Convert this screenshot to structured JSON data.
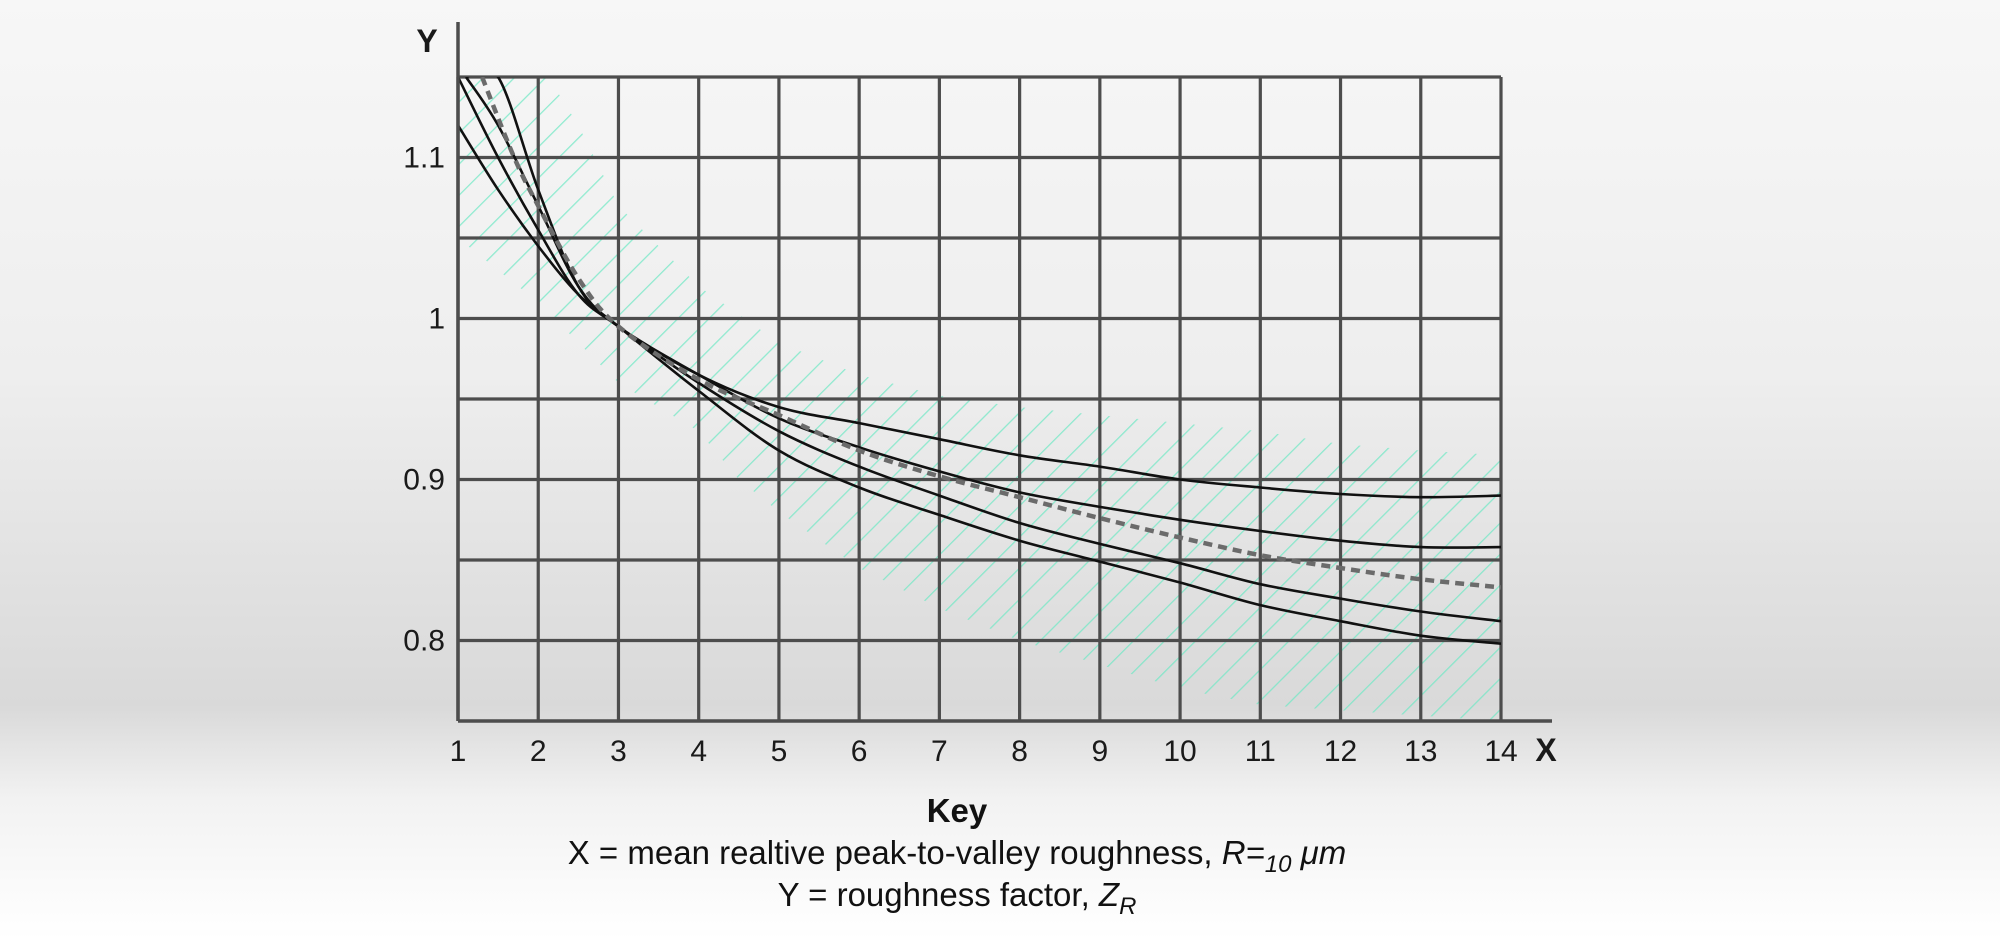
{
  "chart_data": {
    "type": "line",
    "axis_letters": {
      "x": "X",
      "y": "Y"
    },
    "xlim": [
      1,
      14
    ],
    "ylim": [
      0.75,
      1.15
    ],
    "x_ticks": [
      1,
      2,
      3,
      4,
      5,
      6,
      7,
      8,
      9,
      10,
      11,
      12,
      13,
      14
    ],
    "x_tick_labels": [
      "1",
      "2",
      "3",
      "4",
      "5",
      "6",
      "7",
      "8",
      "9",
      "10",
      "11",
      "12",
      "13",
      "14"
    ],
    "y_ticks": [
      0.8,
      0.9,
      1.0,
      1.1
    ],
    "y_tick_labels": [
      "0.8",
      "0.9",
      "1",
      "1.1"
    ],
    "y_gridlines": [
      0.8,
      0.85,
      0.9,
      0.95,
      1.0,
      1.05,
      1.1,
      1.15
    ],
    "grid": true,
    "colors": {
      "grid": "#4d4d4d",
      "curve": "#111111",
      "dashed": "#6b6b6b",
      "hatch": "#6fe8c4"
    },
    "series": [
      {
        "style": "solid",
        "points": [
          [
            1.1,
            1.15
          ],
          [
            1.5,
            1.15
          ],
          [
            2.0,
            1.08
          ],
          [
            2.5,
            1.02
          ],
          [
            3.0,
            0.995
          ],
          [
            4.0,
            0.965
          ],
          [
            5.0,
            0.945
          ],
          [
            6.0,
            0.935
          ],
          [
            7.0,
            0.925
          ],
          [
            8.0,
            0.915
          ],
          [
            9.0,
            0.908
          ],
          [
            10.0,
            0.9
          ],
          [
            11.0,
            0.895
          ],
          [
            12.0,
            0.891
          ],
          [
            13.0,
            0.889
          ],
          [
            14.0,
            0.89
          ]
        ]
      },
      {
        "style": "solid",
        "points": [
          [
            1.1,
            1.15
          ],
          [
            1.5,
            1.12
          ],
          [
            2.0,
            1.07
          ],
          [
            2.5,
            1.02
          ],
          [
            3.0,
            0.995
          ],
          [
            4.0,
            0.965
          ],
          [
            5.0,
            0.938
          ],
          [
            6.0,
            0.92
          ],
          [
            7.0,
            0.905
          ],
          [
            8.0,
            0.892
          ],
          [
            9.0,
            0.883
          ],
          [
            10.0,
            0.875
          ],
          [
            11.0,
            0.868
          ],
          [
            12.0,
            0.862
          ],
          [
            13.0,
            0.858
          ],
          [
            14.0,
            0.858
          ]
        ]
      },
      {
        "style": "solid",
        "points": [
          [
            1.0,
            1.15
          ],
          [
            1.5,
            1.1
          ],
          [
            2.0,
            1.055
          ],
          [
            2.5,
            1.015
          ],
          [
            3.0,
            0.995
          ],
          [
            4.0,
            0.96
          ],
          [
            5.0,
            0.93
          ],
          [
            6.0,
            0.908
          ],
          [
            7.0,
            0.89
          ],
          [
            8.0,
            0.873
          ],
          [
            9.0,
            0.86
          ],
          [
            10.0,
            0.848
          ],
          [
            11.0,
            0.835
          ],
          [
            12.0,
            0.826
          ],
          [
            13.0,
            0.818
          ],
          [
            14.0,
            0.812
          ]
        ]
      },
      {
        "style": "solid",
        "points": [
          [
            1.0,
            1.12
          ],
          [
            1.5,
            1.08
          ],
          [
            2.0,
            1.045
          ],
          [
            2.5,
            1.015
          ],
          [
            3.0,
            0.995
          ],
          [
            4.0,
            0.955
          ],
          [
            5.0,
            0.918
          ],
          [
            6.0,
            0.895
          ],
          [
            7.0,
            0.878
          ],
          [
            8.0,
            0.862
          ],
          [
            9.0,
            0.849
          ],
          [
            10.0,
            0.836
          ],
          [
            11.0,
            0.822
          ],
          [
            12.0,
            0.812
          ],
          [
            13.0,
            0.803
          ],
          [
            14.0,
            0.798
          ]
        ]
      },
      {
        "style": "dashed",
        "points": [
          [
            1.3,
            1.15
          ],
          [
            1.7,
            1.1
          ],
          [
            2.0,
            1.07
          ],
          [
            2.5,
            1.025
          ],
          [
            3.0,
            0.995
          ],
          [
            4.0,
            0.962
          ],
          [
            5.0,
            0.94
          ],
          [
            6.0,
            0.918
          ],
          [
            7.0,
            0.902
          ],
          [
            8.0,
            0.889
          ],
          [
            9.0,
            0.876
          ],
          [
            10.0,
            0.864
          ],
          [
            11.0,
            0.853
          ],
          [
            12.0,
            0.845
          ],
          [
            13.0,
            0.838
          ],
          [
            14.0,
            0.833
          ]
        ]
      }
    ]
  },
  "key": {
    "title": "Key",
    "x_prefix": "X = mean realtive peak-to-valley roughness, ",
    "x_var": "R=",
    "x_sub": "10",
    "x_unit": "μm",
    "y_prefix": "Y = roughness factor, ",
    "y_var": "Z",
    "y_sub": "R"
  }
}
